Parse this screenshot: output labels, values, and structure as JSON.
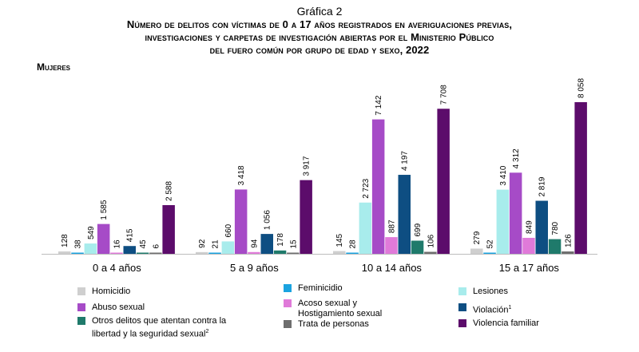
{
  "header": {
    "kicker": "Gráfica 2",
    "title_lines": [
      "Número de delitos con víctimas de 0 a 17 años registrados en averiguaciones previas,",
      "investigaciones y carpetas de investigación abiertas por el Ministerio Público",
      "del fuero común por grupo de edad y sexo, 2022"
    ]
  },
  "section_label": "Mujeres",
  "chart_data": {
    "type": "bar",
    "title": "Número de delitos con víctimas de 0 a 17 años registrados en averiguaciones previas, investigaciones y carpetas de investigación abiertas por el Ministerio Público del fuero común por grupo de edad y sexo, 2022",
    "subtitle": "Mujeres",
    "categories": [
      "0 a 4 años",
      "5 a 9 años",
      "10 a 14 años",
      "15 a 17 años"
    ],
    "ylim": [
      0,
      8500
    ],
    "grid": false,
    "series": [
      {
        "name": "Homicidio",
        "color": "#cfcfcf",
        "values": [
          128,
          92,
          145,
          279
        ],
        "labels": [
          "128",
          "92",
          "145",
          "279"
        ]
      },
      {
        "name": "Feminicidio",
        "color": "#1aa3e0",
        "values": [
          38,
          21,
          28,
          52
        ],
        "labels": [
          "38",
          "21",
          "28",
          "52"
        ]
      },
      {
        "name": "Lesiones",
        "color": "#a8ecec",
        "values": [
          549,
          660,
          2723,
          3410
        ],
        "labels": [
          "549",
          "660",
          "2 723",
          "3 410"
        ]
      },
      {
        "name": "Abuso sexual",
        "color": "#a64bc7",
        "values": [
          1585,
          3418,
          7142,
          4312
        ],
        "labels": [
          "1 585",
          "3 418",
          "7 142",
          "4 312"
        ]
      },
      {
        "name": "Acoso sexual y Hostigamiento sexual",
        "color": "#e07ad9",
        "values": [
          16,
          94,
          887,
          849
        ],
        "labels": [
          "16",
          "94",
          "887",
          "849"
        ]
      },
      {
        "name": "Violación",
        "color": "#0e4e82",
        "values": [
          415,
          1056,
          4197,
          2819
        ],
        "labels": [
          "415",
          "1 056",
          "4 197",
          "2 819"
        ]
      },
      {
        "name": "Otros delitos que atentan contra la libertad y la seguridad sexual",
        "color": "#1f7a6b",
        "values": [
          45,
          178,
          699,
          780
        ],
        "labels": [
          "45",
          "178",
          "699",
          "780"
        ]
      },
      {
        "name": "Trata de personas",
        "color": "#6e6e6e",
        "values": [
          6,
          15,
          106,
          126
        ],
        "labels": [
          "6",
          "15",
          "106",
          "126"
        ]
      },
      {
        "name": "Violencia familiar",
        "color": "#5c0c6b",
        "values": [
          2588,
          3917,
          7708,
          8058
        ],
        "labels": [
          "2 588",
          "3 917",
          "7 708",
          "8 058"
        ]
      }
    ]
  },
  "legend": {
    "homicidio": "Homicidio",
    "feminicidio": "Feminicidio",
    "lesiones": "Lesiones",
    "abuso": "Abuso sexual",
    "acoso_1": "Acoso sexual y",
    "acoso_2": "Hostigamiento sexual",
    "violacion": "Violación",
    "violacion_sup": "1",
    "otros_1": "Otros delitos que atentan contra la",
    "otros_2": "libertad y la seguridad sexual",
    "otros_sup": "2",
    "trata": "Trata de personas",
    "violencia": "Violencia familiar"
  }
}
